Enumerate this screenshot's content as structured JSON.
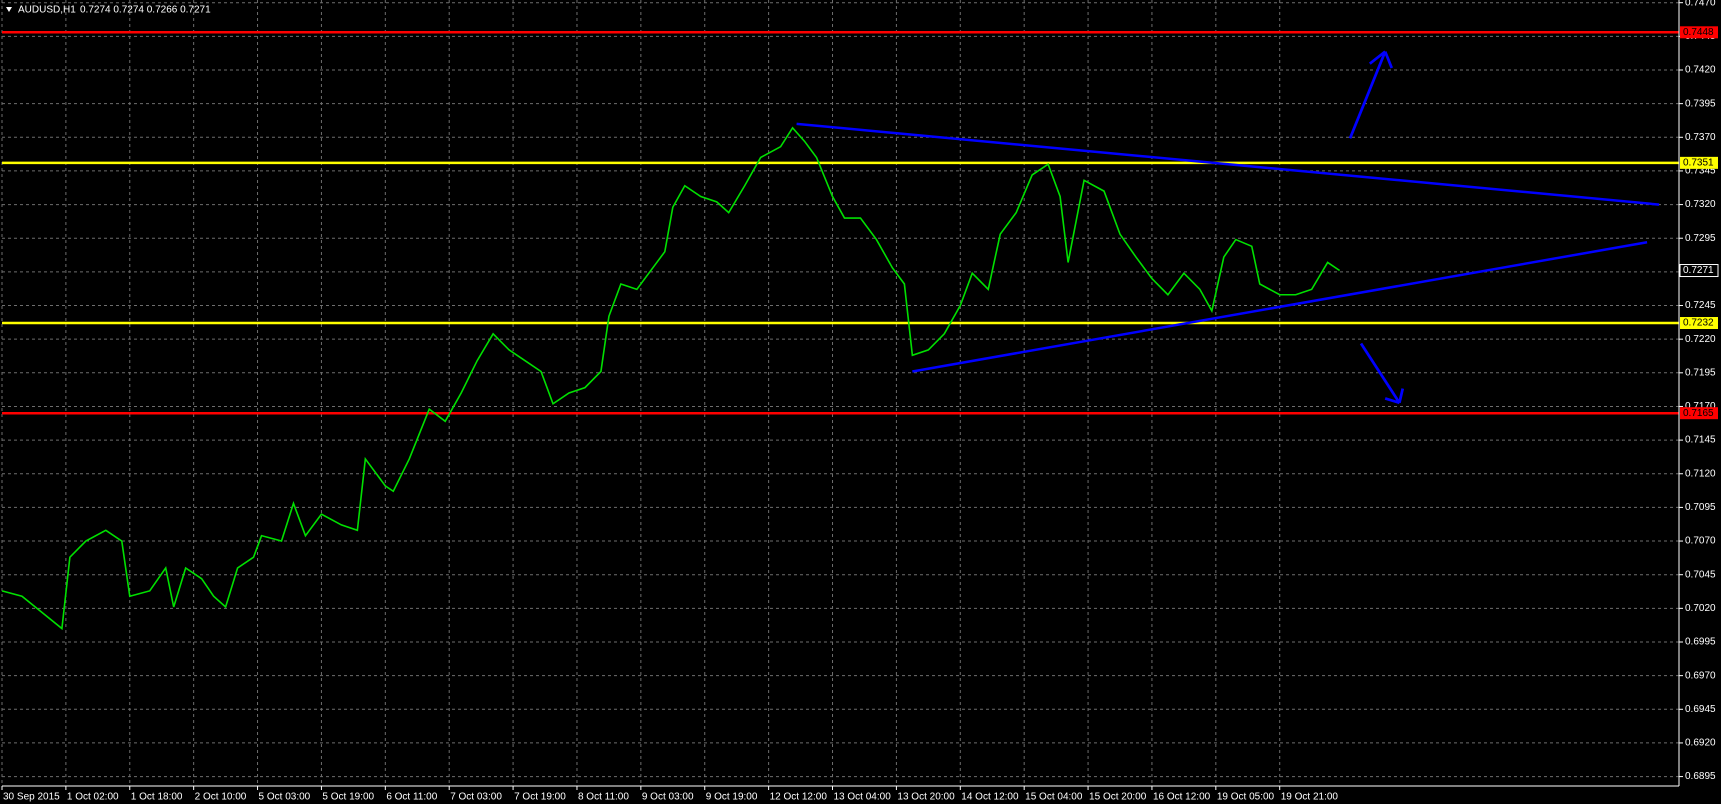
{
  "chart_data": {
    "type": "line",
    "title": "AUDUSD,H1",
    "ohlc_text": "0.7274 0.7274 0.7266 0.7271",
    "xlim": [
      0,
      420
    ],
    "ylim": [
      0.6888,
      0.7472
    ],
    "grid": true,
    "xticks": [
      {
        "value": 0,
        "label": "30 Sep 2015"
      },
      {
        "value": 16,
        "label": "1 Oct 02:00"
      },
      {
        "value": 32,
        "label": "1 Oct 18:00"
      },
      {
        "value": 48,
        "label": "2 Oct 10:00"
      },
      {
        "value": 64,
        "label": "5 Oct 03:00"
      },
      {
        "value": 80,
        "label": "5 Oct 19:00"
      },
      {
        "value": 96,
        "label": "6 Oct 11:00"
      },
      {
        "value": 112,
        "label": "7 Oct 03:00"
      },
      {
        "value": 128,
        "label": "7 Oct 19:00"
      },
      {
        "value": 144,
        "label": "8 Oct 11:00"
      },
      {
        "value": 160,
        "label": "9 Oct 03:00"
      },
      {
        "value": 176,
        "label": "9 Oct 19:00"
      },
      {
        "value": 192,
        "label": "12 Oct 12:00"
      },
      {
        "value": 208,
        "label": "13 Oct 04:00"
      },
      {
        "value": 224,
        "label": "13 Oct 20:00"
      },
      {
        "value": 240,
        "label": "14 Oct 12:00"
      },
      {
        "value": 256,
        "label": "15 Oct 04:00"
      },
      {
        "value": 272,
        "label": "15 Oct 20:00"
      },
      {
        "value": 288,
        "label": "16 Oct 12:00"
      },
      {
        "value": 304,
        "label": "19 Oct 05:00"
      },
      {
        "value": 320,
        "label": "19 Oct 21:00"
      }
    ],
    "yticks": [
      {
        "value": 0.747,
        "label": "0.7470"
      },
      0.7445,
      {
        "value": 0.742,
        "label": "0.7420"
      },
      0.7395,
      {
        "value": 0.737,
        "label": "0.7370"
      },
      0.7345,
      {
        "value": 0.732,
        "label": "0.7320"
      },
      0.7295,
      {
        "value": 0.727,
        "label": "0.7270"
      },
      0.7245,
      {
        "value": 0.722,
        "label": "0.7220"
      },
      0.7195,
      {
        "value": 0.717,
        "label": "0.7170"
      },
      0.7145,
      {
        "value": 0.712,
        "label": "0.7120"
      },
      0.7095,
      {
        "value": 0.707,
        "label": "0.7070"
      },
      0.7045,
      {
        "value": 0.702,
        "label": "0.7020"
      },
      0.6995,
      {
        "value": 0.697,
        "label": "0.6970"
      },
      0.6945,
      {
        "value": 0.692,
        "label": "0.6920"
      },
      0.6895
    ],
    "series": [
      {
        "color": "#00e000",
        "x": [
          0,
          5,
          10,
          15,
          17,
          21,
          26,
          30,
          32,
          37,
          41,
          43,
          46,
          50,
          53,
          56,
          59,
          63,
          65,
          70,
          73,
          76,
          80,
          85,
          89,
          91,
          96,
          98,
          102,
          107,
          111,
          115,
          119,
          123,
          127,
          131,
          135,
          138,
          142,
          146,
          150,
          152,
          155,
          159,
          163,
          166,
          168,
          171,
          175,
          179,
          182,
          186,
          190,
          195,
          198,
          201,
          204,
          208,
          211,
          215,
          219,
          223,
          226,
          228,
          232,
          236,
          240,
          243,
          247,
          250,
          254,
          258,
          262,
          265,
          267,
          271,
          276,
          280,
          284,
          288,
          292,
          296,
          300,
          303,
          306,
          309,
          313,
          315,
          320,
          324,
          328,
          332,
          335
        ],
        "values": [
          0.7033,
          0.7029,
          0.7017,
          0.7005,
          0.7058,
          0.707,
          0.7078,
          0.707,
          0.7029,
          0.7033,
          0.705,
          0.7021,
          0.705,
          0.7042,
          0.7029,
          0.7021,
          0.705,
          0.7058,
          0.7074,
          0.707,
          0.7098,
          0.7074,
          0.709,
          0.7082,
          0.7078,
          0.7131,
          0.7111,
          0.7107,
          0.7131,
          0.7168,
          0.7159,
          0.718,
          0.7204,
          0.7224,
          0.7212,
          0.7204,
          0.7196,
          0.7172,
          0.718,
          0.7184,
          0.7196,
          0.7237,
          0.7261,
          0.7257,
          0.7273,
          0.7285,
          0.7318,
          0.7334,
          0.7326,
          0.7322,
          0.7314,
          0.7334,
          0.7355,
          0.7363,
          0.7377,
          0.7367,
          0.7355,
          0.7326,
          0.731,
          0.731,
          0.7294,
          0.7273,
          0.7261,
          0.7208,
          0.7212,
          0.7224,
          0.7245,
          0.7269,
          0.7257,
          0.7298,
          0.7314,
          0.7342,
          0.735,
          0.7326,
          0.7277,
          0.7338,
          0.733,
          0.7298,
          0.7281,
          0.7265,
          0.7253,
          0.7269,
          0.7257,
          0.7241,
          0.7281,
          0.7294,
          0.7289,
          0.7261,
          0.7253,
          0.7253,
          0.7257,
          0.7277,
          0.7271
        ]
      }
    ],
    "levels": [
      {
        "value": 0.7448,
        "color": "#ff0000"
      },
      {
        "value": 0.7351,
        "color": "#ffff00"
      },
      {
        "value": 0.7232,
        "color": "#ffff00"
      },
      {
        "value": 0.7165,
        "color": "#ff0000"
      }
    ],
    "trendlines": [
      {
        "x": [
          199,
          415
        ],
        "values": [
          0.738,
          0.732
        ],
        "color": "#0000ff"
      },
      {
        "x": [
          228,
          412
        ],
        "values": [
          0.7196,
          0.7292
        ],
        "color": "#0000ff"
      }
    ]
  }
}
